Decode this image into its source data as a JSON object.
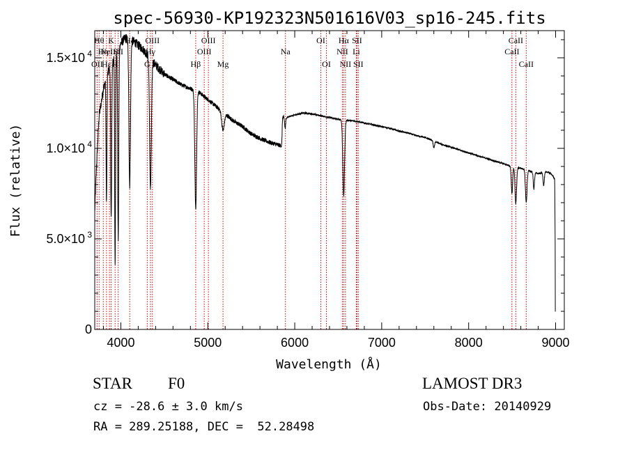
{
  "chart_data": {
    "type": "line",
    "title": "spec-56930-KP192323N501616V03_sp16-245.fits",
    "xlabel": "Wavelength (Å)",
    "ylabel": "Flux (relative)",
    "xlim": [
      3700,
      9100
    ],
    "ylim": [
      0,
      16500
    ],
    "x_ticks": [
      4000,
      5000,
      6000,
      7000,
      8000,
      9000
    ],
    "x_tick_labels": [
      "4000",
      "5000",
      "6000",
      "7000",
      "8000",
      "9000"
    ],
    "y_ticks": [
      0,
      5000,
      10000,
      15000
    ],
    "y_tick_labels": [
      {
        "mantissa": "0",
        "exp": ""
      },
      {
        "mantissa": "5.0×10",
        "exp": "3"
      },
      {
        "mantissa": "1.0×10",
        "exp": "4"
      },
      {
        "mantissa": "1.5×10",
        "exp": "4"
      }
    ],
    "series": [
      {
        "name": "spectrum",
        "continuum": [
          [
            3700,
            6500
          ],
          [
            3720,
            9000
          ],
          [
            3750,
            11800
          ],
          [
            3800,
            13300
          ],
          [
            3850,
            14200
          ],
          [
            3900,
            14800
          ],
          [
            3950,
            15300
          ],
          [
            4000,
            15800
          ],
          [
            4050,
            16100
          ],
          [
            4100,
            16000
          ],
          [
            4150,
            15900
          ],
          [
            4200,
            15700
          ],
          [
            4250,
            15500
          ],
          [
            4300,
            15200
          ],
          [
            4400,
            14600
          ],
          [
            4500,
            14100
          ],
          [
            4600,
            13800
          ],
          [
            4700,
            13500
          ],
          [
            4800,
            13300
          ],
          [
            4900,
            13100
          ],
          [
            5000,
            12700
          ],
          [
            5100,
            12300
          ],
          [
            5200,
            11900
          ],
          [
            5300,
            11500
          ],
          [
            5400,
            11200
          ],
          [
            5500,
            10800
          ],
          [
            5600,
            10550
          ],
          [
            5700,
            10350
          ],
          [
            5800,
            10200
          ],
          [
            5850,
            10150
          ],
          [
            5860,
            11700
          ],
          [
            5900,
            11700
          ],
          [
            6000,
            11850
          ],
          [
            6100,
            11950
          ],
          [
            6200,
            11900
          ],
          [
            6300,
            11800
          ],
          [
            6400,
            11700
          ],
          [
            6500,
            11600
          ],
          [
            6600,
            11550
          ],
          [
            6700,
            11500
          ],
          [
            6800,
            11400
          ],
          [
            6900,
            11300
          ],
          [
            7000,
            11200
          ],
          [
            7100,
            11100
          ],
          [
            7200,
            10950
          ],
          [
            7300,
            10850
          ],
          [
            7400,
            10700
          ],
          [
            7500,
            10600
          ],
          [
            7600,
            10400
          ],
          [
            7700,
            10200
          ],
          [
            7800,
            10050
          ],
          [
            7900,
            9900
          ],
          [
            8000,
            9750
          ],
          [
            8100,
            9600
          ],
          [
            8200,
            9450
          ],
          [
            8300,
            9300
          ],
          [
            8400,
            9150
          ],
          [
            8500,
            9000
          ],
          [
            8600,
            8900
          ],
          [
            8700,
            8750
          ],
          [
            8800,
            8600
          ],
          [
            8900,
            8700
          ],
          [
            8950,
            8600
          ],
          [
            8990,
            8300
          ],
          [
            9000,
            1000
          ]
        ],
        "absorption": [
          {
            "center": 3835,
            "depth": 7000,
            "width": 5
          },
          {
            "center": 3889,
            "depth": 8500,
            "width": 6
          },
          {
            "center": 3934,
            "depth": 11500,
            "width": 5
          },
          {
            "center": 3970,
            "depth": 10500,
            "width": 6
          },
          {
            "center": 4102,
            "depth": 8000,
            "width": 9
          },
          {
            "center": 4341,
            "depth": 7200,
            "width": 10
          },
          {
            "center": 4861,
            "depth": 6500,
            "width": 10
          },
          {
            "center": 5175,
            "depth": 1000,
            "width": 15
          },
          {
            "center": 5890,
            "depth": 600,
            "width": 6
          },
          {
            "center": 6563,
            "depth": 4200,
            "width": 10
          },
          {
            "center": 7600,
            "depth": 350,
            "width": 8
          },
          {
            "center": 8498,
            "depth": 1500,
            "width": 8
          },
          {
            "center": 8542,
            "depth": 2000,
            "width": 9
          },
          {
            "center": 8662,
            "depth": 1800,
            "width": 9
          },
          {
            "center": 8750,
            "depth": 900,
            "width": 7
          },
          {
            "center": 8863,
            "depth": 700,
            "width": 7
          }
        ]
      }
    ],
    "line_markers": [
      {
        "wavelength": 3727,
        "label": "OII",
        "row": 3
      },
      {
        "wavelength": 3750,
        "label": "Hθ",
        "row": 1
      },
      {
        "wavelength": 3798,
        "label": "Hη",
        "row": 2
      },
      {
        "wavelength": 3835,
        "label": "Hε",
        "row": 3
      },
      {
        "wavelength": 3869,
        "label": "NeIII",
        "row": 2
      },
      {
        "wavelength": 3889,
        "label": "K",
        "row": 1
      },
      {
        "wavelength": 3934,
        "label": "H",
        "row": 3
      },
      {
        "wavelength": 3970,
        "label": "SII",
        "row": 2
      },
      {
        "wavelength": 4102,
        "label": "Hδ",
        "row": 1
      },
      {
        "wavelength": 4304,
        "label": "G",
        "row": 3
      },
      {
        "wavelength": 4341,
        "label": "Hγ",
        "row": 2
      },
      {
        "wavelength": 4363,
        "label": "OIII",
        "row": 1
      },
      {
        "wavelength": 4861,
        "label": "Hβ",
        "row": 3
      },
      {
        "wavelength": 4959,
        "label": "OIII",
        "row": 2
      },
      {
        "wavelength": 5007,
        "label": "OIII",
        "row": 1
      },
      {
        "wavelength": 5175,
        "label": "Mg",
        "row": 3
      },
      {
        "wavelength": 5893,
        "label": "Na",
        "row": 2
      },
      {
        "wavelength": 6300,
        "label": "OI",
        "row": 1
      },
      {
        "wavelength": 6364,
        "label": "OI",
        "row": 3
      },
      {
        "wavelength": 6548,
        "label": "NII",
        "row": 2
      },
      {
        "wavelength": 6563,
        "label": "Hα",
        "row": 1
      },
      {
        "wavelength": 6583,
        "label": "NII",
        "row": 3
      },
      {
        "wavelength": 6708,
        "label": "Li",
        "row": 2
      },
      {
        "wavelength": 6716,
        "label": "SII",
        "row": 1
      },
      {
        "wavelength": 6731,
        "label": "SII",
        "row": 3
      },
      {
        "wavelength": 8498,
        "label": "CaII",
        "row": 2
      },
      {
        "wavelength": 8542,
        "label": "CaII",
        "row": 1
      },
      {
        "wavelength": 8662,
        "label": "CaII",
        "row": 3
      }
    ]
  },
  "object": {
    "class": "STAR",
    "subclass": "F0",
    "survey": "LAMOST DR3",
    "redshift_text": "cz = -28.6 ± 3.0 km/s",
    "obs_date_text": "Obs-Date: 20140929",
    "coords_text": "RA = 289.25188, DEC =  52.28498"
  }
}
